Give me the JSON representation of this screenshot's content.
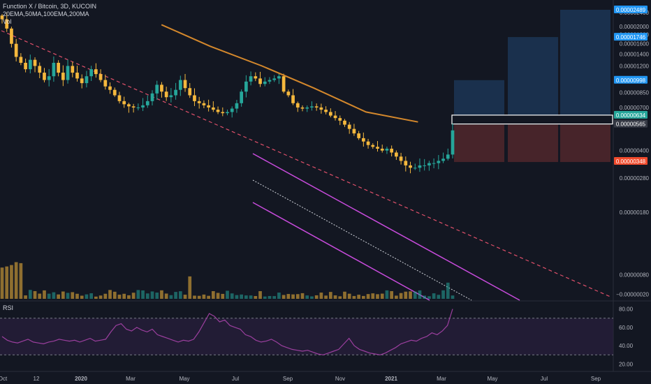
{
  "header": {
    "title": "Function X / Bitcoin, 3D, KUCOIN",
    "indicators": "20EMA,50MA,100EMA,200MA",
    "volume_label": "Vol",
    "rsi_label": "RSI"
  },
  "colors": {
    "background": "#131722",
    "candle_up": "#26a69a",
    "candle_down": "#f5b83d",
    "ma_line": "#d4882c",
    "channel": "#c84bdc",
    "trendline": "#e0506a",
    "rsi_line": "#9b3f9e",
    "rsi_band": "#2a1f3d",
    "target_box": "#1e3a5c",
    "stop_box": "#5a2a2e",
    "tag_blue": "#2196f3",
    "tag_teal": "#26a69a",
    "tag_red": "#f04a2c"
  },
  "price_axis": {
    "ticks": [
      "0.00002400",
      "0.00002000",
      "0.00001800",
      "0.00001600",
      "0.00001400",
      "0.00001200",
      "0.00000850",
      "0.00000700",
      "0.00000400",
      "0.00000280",
      "0.00000180",
      "0.00000080",
      "−0.00000020"
    ],
    "tags": [
      {
        "label": "0.00002489",
        "color": "#2196f3"
      },
      {
        "label": "0.00001746",
        "color": "#2196f3"
      },
      {
        "label": "0.00000998",
        "color": "#2196f3"
      },
      {
        "label": "0.00000634",
        "color": "#26a69a"
      },
      {
        "label": "0.00000565",
        "color": "#363a45"
      },
      {
        "label": "0.00000348",
        "color": "#f04a2c"
      }
    ]
  },
  "rsi_axis": {
    "ticks": [
      "80.00",
      "60.00",
      "40.00",
      "20.00"
    ]
  },
  "time_axis": {
    "ticks": [
      "Oct",
      "12",
      "2020",
      "Mar",
      "May",
      "Jul",
      "Sep",
      "Nov",
      "2021",
      "Mar",
      "May",
      "Jul",
      "Sep"
    ]
  },
  "chart_data": {
    "type": "candlestick",
    "title": "Function X / Bitcoin, 3D, KUCOIN",
    "price_scale": "log",
    "close": [
      2.2e-05,
      1.95e-05,
      1.6e-05,
      1.35e-05,
      1.25e-05,
      1.15e-05,
      1.3e-05,
      1.2e-05,
      1.1e-05,
      1e-05,
      1.05e-05,
      1.25e-05,
      1.1e-05,
      1e-05,
      1.2e-05,
      1.1e-05,
      1.02e-05,
      9.6e-06,
      1.05e-05,
      1.15e-05,
      1.08e-05,
      1e-05,
      9.2e-06,
      8.8e-06,
      8.2e-06,
      7.6e-06,
      7.3e-06,
      7.1e-06,
      7e-06,
      7e-06,
      7.2e-06,
      7.6e-06,
      8.4e-06,
      9.4e-06,
      8.6e-06,
      8e-06,
      8.2e-06,
      8.8e-06,
      1e-05,
      9e-06,
      8.2e-06,
      7.6e-06,
      7.4e-06,
      7.2e-06,
      7e-06,
      6.8e-06,
      6.6e-06,
      6.5e-06,
      6.6e-06,
      6.9e-06,
      7.4e-06,
      8.6e-06,
      9.8e-06,
      1.05e-05,
      1.02e-05,
      9.5e-06,
      9.8e-06,
      1e-05,
      1.02e-05,
      1.05e-05,
      8.6e-06,
      8.2e-06,
      7.4e-06,
      7e-06,
      6.9e-06,
      7e-06,
      7.1e-06,
      7e-06,
      6.8e-06,
      6.6e-06,
      6.3e-06,
      6.1e-06,
      5.9e-06,
      5.6e-06,
      5.3e-06,
      5e-06,
      4.7e-06,
      4.5e-06,
      4.3e-06,
      4.2e-06,
      4.1e-06,
      4e-06,
      4.1e-06,
      3.9e-06,
      3.7e-06,
      3.5e-06,
      3.3e-06,
      3.2e-06,
      3.2e-06,
      3.3e-06,
      3.3e-06,
      3.4e-06,
      3.4e-06,
      3.5e-06,
      3.6e-06,
      3.8e-06,
      5.2e-06
    ],
    "ma_series": [
      {
        "x_index": 46,
        "value": 2.05e-05
      },
      {
        "x_index": 60,
        "value": 1.55e-05
      },
      {
        "x_index": 75,
        "value": 1.2e-05
      },
      {
        "x_index": 90,
        "value": 9e-06
      },
      {
        "x_index": 105,
        "value": 6.6e-06
      },
      {
        "x_index": 120,
        "value": 5.8e-06
      }
    ],
    "targets": {
      "entry_zone": [
        5.65e-06,
        6.34e-06
      ],
      "stop": 3.48e-06,
      "take_profits": [
        9.98e-06,
        1.746e-05,
        2.489e-05
      ]
    },
    "rsi": [
      50,
      46,
      44,
      43,
      45,
      47,
      44,
      43,
      42,
      44,
      45,
      47,
      46,
      45,
      46,
      44,
      46,
      48,
      45,
      46,
      47,
      55,
      62,
      64,
      58,
      56,
      60,
      57,
      55,
      58,
      52,
      50,
      48,
      46,
      44,
      46,
      45,
      47,
      55,
      65,
      75,
      72,
      66,
      68,
      62,
      60,
      58,
      52,
      50,
      46,
      44,
      45,
      47,
      44,
      40,
      38,
      36,
      35,
      34,
      35,
      33,
      31,
      30,
      32,
      34,
      36,
      42,
      48,
      40,
      36,
      34,
      32,
      31,
      30,
      32,
      35,
      38,
      42,
      44,
      46,
      45,
      48,
      50,
      54,
      52,
      56,
      62,
      80
    ]
  }
}
